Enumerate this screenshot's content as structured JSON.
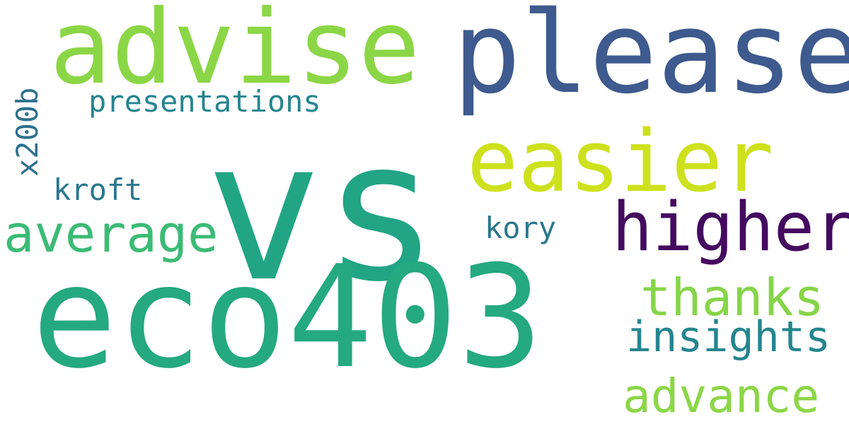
{
  "words": {
    "vs": {
      "text": "vs",
      "color": "#21a585"
    },
    "eco403": {
      "text": "eco403",
      "color": "#25a97f"
    },
    "please": {
      "text": "please",
      "color": "#3e5a8e"
    },
    "advise": {
      "text": "advise",
      "color": "#8bd646"
    },
    "easier": {
      "text": "easier",
      "color": "#cde11d"
    },
    "higher": {
      "text": "higher",
      "color": "#440a5f"
    },
    "average": {
      "text": "average",
      "color": "#3cbb75"
    },
    "thanks": {
      "text": "thanks",
      "color": "#86d549"
    },
    "insights": {
      "text": "insights",
      "color": "#25858e"
    },
    "advance": {
      "text": "advance",
      "color": "#8bd646"
    },
    "presentations": {
      "text": "presentations",
      "color": "#25858e"
    },
    "kroft": {
      "text": "kroft",
      "color": "#2a788e"
    },
    "kory": {
      "text": "kory",
      "color": "#2a788e"
    },
    "x200b": {
      "text": "x200b",
      "color": "#2d718e"
    }
  }
}
